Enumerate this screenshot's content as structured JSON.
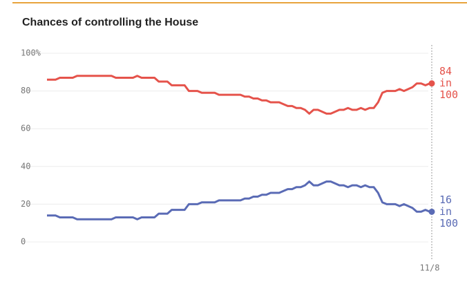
{
  "chart_data": {
    "type": "line",
    "title": "Chances of controlling the House",
    "categories": [
      null,
      null,
      null,
      null,
      null,
      null,
      null,
      null,
      null,
      null,
      null,
      null,
      null,
      null,
      null,
      null,
      null,
      null,
      null,
      null,
      null,
      null,
      null,
      null,
      null,
      null,
      null,
      null,
      null,
      null,
      null,
      null,
      null,
      null,
      null,
      null,
      null,
      null,
      null,
      null,
      null,
      null,
      null,
      null,
      null,
      null,
      null,
      null,
      null,
      null,
      null,
      null,
      null,
      null,
      null,
      null,
      null,
      null,
      null,
      null,
      null,
      null,
      null,
      null,
      null,
      null,
      null,
      null,
      null,
      null,
      null,
      null,
      null,
      null,
      null,
      null,
      null,
      null,
      null,
      null,
      null,
      null,
      null,
      null,
      null,
      null,
      null,
      null,
      null,
      "11/8"
    ],
    "series": [
      {
        "name": null,
        "color": "#e5534b",
        "end_label": [
          "84",
          "in",
          "100"
        ],
        "values": [
          86,
          86,
          86,
          87,
          87,
          87,
          87,
          88,
          88,
          88,
          88,
          88,
          88,
          88,
          88,
          88,
          87,
          87,
          87,
          87,
          87,
          88,
          87,
          87,
          87,
          87,
          85,
          85,
          85,
          83,
          83,
          83,
          83,
          80,
          80,
          80,
          79,
          79,
          79,
          79,
          78,
          78,
          78,
          78,
          78,
          78,
          77,
          77,
          76,
          76,
          75,
          75,
          74,
          74,
          74,
          73,
          72,
          72,
          71,
          71,
          70,
          68,
          70,
          70,
          69,
          68,
          68,
          69,
          70,
          70,
          71,
          70,
          70,
          71,
          70,
          71,
          71,
          74,
          79,
          80,
          80,
          80,
          81,
          80,
          81,
          82,
          84,
          84,
          83,
          84
        ]
      },
      {
        "name": null,
        "color": "#5a6bb5",
        "end_label": [
          "16",
          "in",
          "100"
        ],
        "values": [
          14,
          14,
          14,
          13,
          13,
          13,
          13,
          12,
          12,
          12,
          12,
          12,
          12,
          12,
          12,
          12,
          13,
          13,
          13,
          13,
          13,
          12,
          13,
          13,
          13,
          13,
          15,
          15,
          15,
          17,
          17,
          17,
          17,
          20,
          20,
          20,
          21,
          21,
          21,
          21,
          22,
          22,
          22,
          22,
          22,
          22,
          23,
          23,
          24,
          24,
          25,
          25,
          26,
          26,
          26,
          27,
          28,
          28,
          29,
          29,
          30,
          32,
          30,
          30,
          31,
          32,
          32,
          31,
          30,
          30,
          29,
          30,
          30,
          29,
          30,
          29,
          29,
          26,
          21,
          20,
          20,
          20,
          19,
          20,
          19,
          18,
          16,
          16,
          17,
          16
        ]
      }
    ],
    "ylim": [
      0,
      100
    ],
    "yticks": [
      0,
      20,
      40,
      60,
      80,
      {
        "value": 100,
        "label": "100%"
      }
    ],
    "grid": true
  }
}
